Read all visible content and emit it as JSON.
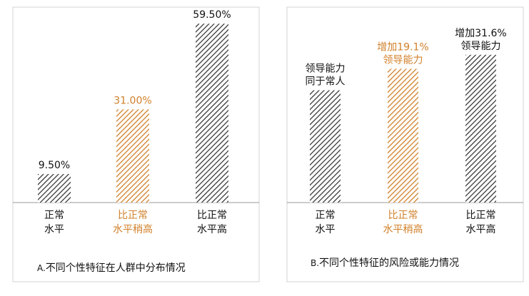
{
  "colors": {
    "normal": "#2b2b2b",
    "highlight": "#d0802a",
    "frame": "#d3d3d3",
    "axis": "#9a9a9a"
  },
  "chart_data": [
    {
      "type": "bar",
      "caption_prefix": "A.",
      "caption": "不同个性特征在人群中分布情况",
      "categories": [
        [
          "正常",
          "水平"
        ],
        [
          "比正常",
          "水平稍高"
        ],
        [
          "比正常",
          "水平高"
        ]
      ],
      "values": [
        9.5,
        31.0,
        59.5
      ],
      "data_labels": [
        [
          "9.50%"
        ],
        [
          "31.00%"
        ],
        [
          "59.50%"
        ]
      ],
      "highlight_index": 1,
      "ylim": [
        0,
        65
      ],
      "grid": false
    },
    {
      "type": "bar",
      "caption_prefix": "B.",
      "caption": "不同个性特征的风险或能力情况",
      "categories": [
        [
          "正常",
          "水平"
        ],
        [
          "比正常",
          "水平稍高"
        ],
        [
          "比正常",
          "水平高"
        ]
      ],
      "values": [
        100,
        119.1,
        131.6
      ],
      "data_labels": [
        [
          "领导能力",
          "同于常人"
        ],
        [
          "增加19.1%",
          "领导能力"
        ],
        [
          "增加31.6%",
          "领导能力"
        ]
      ],
      "highlight_index": 1,
      "ylim": [
        0,
        174
      ],
      "grid": false
    }
  ]
}
